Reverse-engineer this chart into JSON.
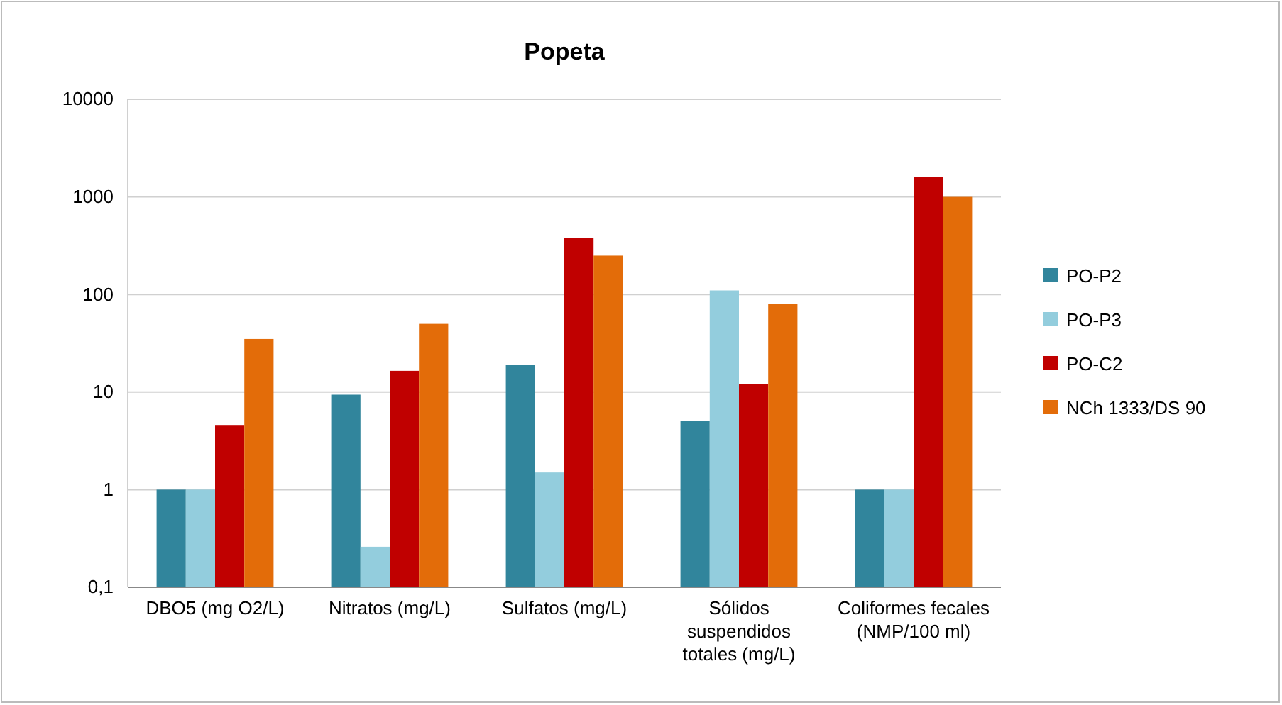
{
  "chart_data": {
    "type": "bar",
    "title": "Popeta",
    "categories": [
      "DBO5 (mg O2/L)",
      "Nitratos (mg/L)",
      "Sulfatos (mg/L)",
      "Sólidos suspendidos totales (mg/L)",
      "Coliformes fecales (NMP/100 ml)"
    ],
    "series": [
      {
        "name": "PO-P2",
        "color": "#31859c",
        "values": [
          1,
          9.4,
          19,
          5.1,
          1
        ]
      },
      {
        "name": "PO-P3",
        "color": "#93cddd",
        "values": [
          1,
          0.26,
          1.5,
          110,
          1
        ]
      },
      {
        "name": "PO-C2",
        "color": "#c00000",
        "values": [
          4.6,
          16.5,
          380,
          12,
          1600
        ]
      },
      {
        "name": "NCh 1333/DS 90",
        "color": "#e36c09",
        "values": [
          35,
          50,
          250,
          80,
          1000
        ]
      }
    ],
    "log": true,
    "ylim": [
      0.1,
      10000
    ],
    "yticks": [
      {
        "value": 0.1,
        "label": "0,1"
      },
      1,
      10,
      100,
      1000,
      10000
    ],
    "grid": "y",
    "legend": "right"
  }
}
